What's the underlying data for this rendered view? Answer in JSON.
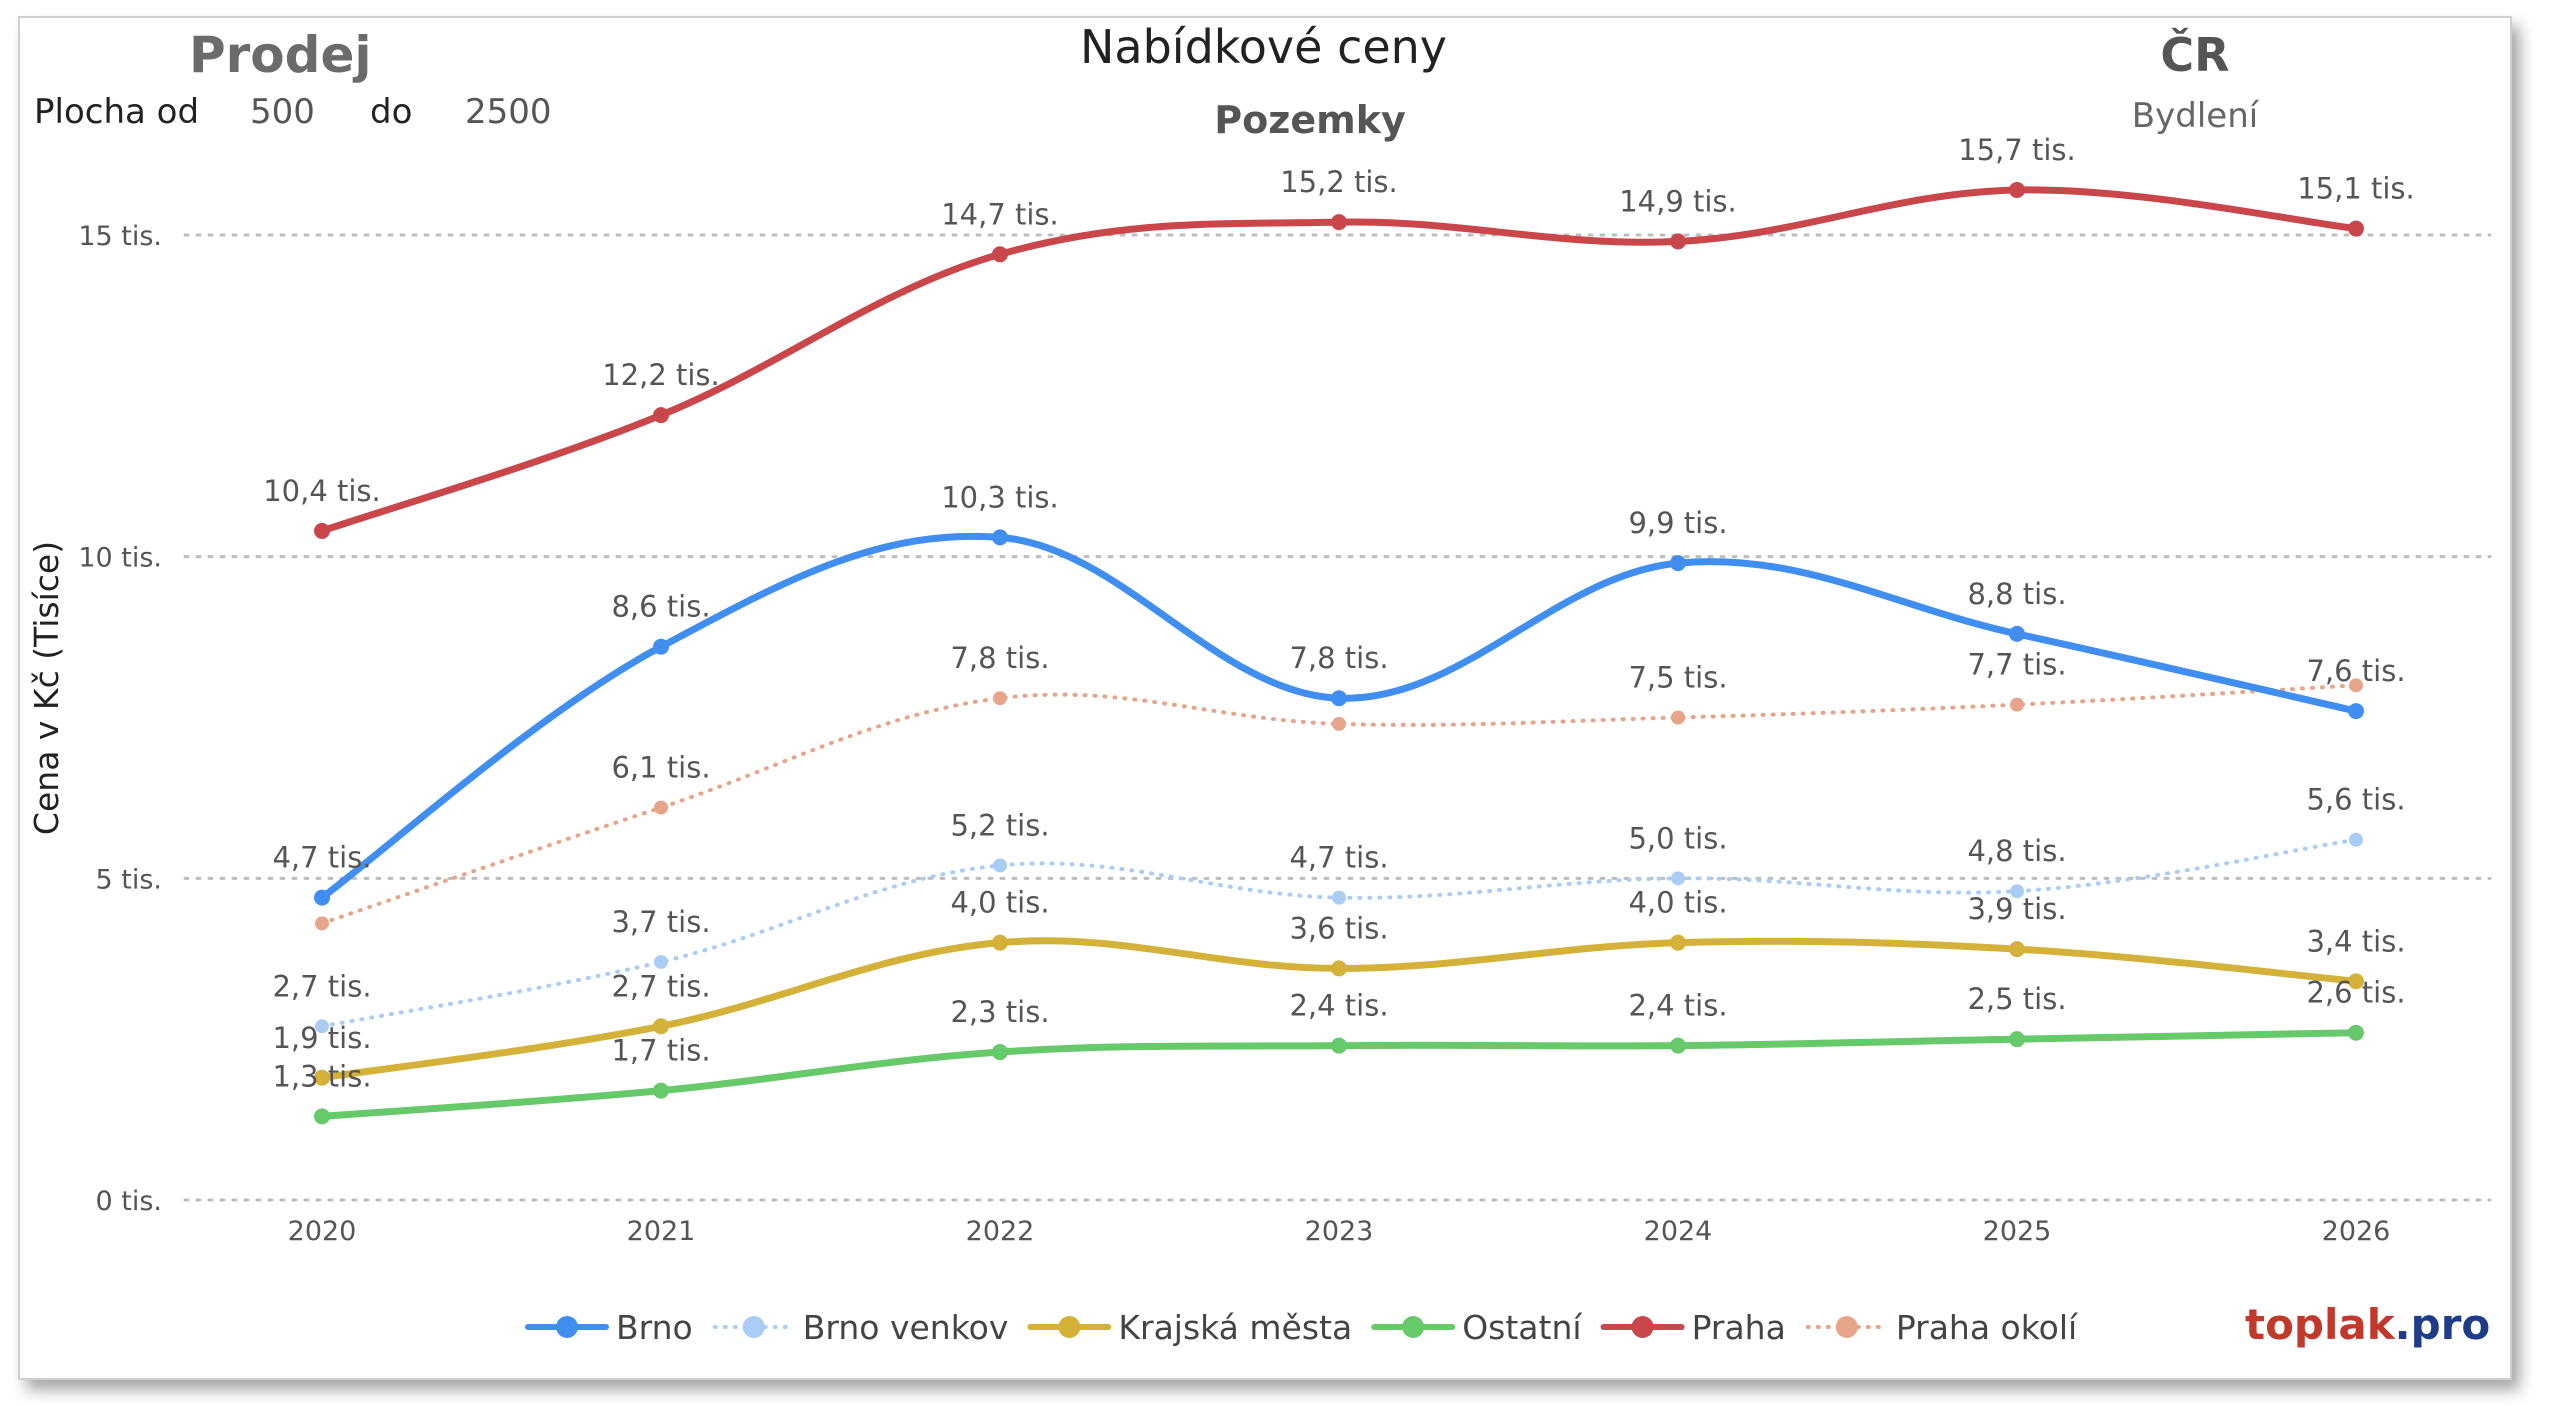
{
  "header": {
    "left_title": "Prodej",
    "title": "Nabídkové ceny",
    "subtitle": "Pozemky",
    "region": "ČR",
    "region_sub": "Bydlení",
    "filter": {
      "label_from": "Plocha od",
      "value_from": "500",
      "label_to": "do",
      "value_to": "2500"
    }
  },
  "brand": {
    "part1": "toplak",
    "part2": ".pro",
    "color1": "#c0392b",
    "color2": "#1f3c88"
  },
  "chart_data": {
    "type": "line",
    "title": "Nabídkové ceny",
    "subtitle": "Pozemky",
    "xlabel": "",
    "ylabel": "Cena v Kč (Tisíce)",
    "x": [
      "2020",
      "2021",
      "2022",
      "2023",
      "2024",
      "2025",
      "2026"
    ],
    "ylim": [
      0,
      15000
    ],
    "yticks": [
      {
        "value": 0,
        "label": "0 tis."
      },
      {
        "value": 5000,
        "label": "5 tis."
      },
      {
        "value": 10000,
        "label": "10 tis."
      },
      {
        "value": 15000,
        "label": "15 tis."
      }
    ],
    "grid": "horizontal-dotted",
    "legend": "bottom",
    "series": [
      {
        "name": "Brno",
        "color": "#3f8ef0",
        "style": "solid",
        "values": [
          4700,
          8600,
          10300,
          7800,
          9900,
          8800,
          7600
        ],
        "labels": [
          "4,7 tis.",
          "8,6 tis.",
          "10,3 tis.",
          "7,8 tis.",
          "9,9 tis.",
          "8,8 tis.",
          "7,6 tis."
        ]
      },
      {
        "name": "Brno venkov",
        "color": "#a9cdf5",
        "style": "dotted",
        "values": [
          2700,
          3700,
          5200,
          4700,
          5000,
          4800,
          5600
        ],
        "labels": [
          "2,7 tis.",
          "3,7 tis.",
          "5,2 tis.",
          "4,7 tis.",
          "5,0 tis.",
          "4,8 tis.",
          "5,6 tis."
        ]
      },
      {
        "name": "Krajská města",
        "color": "#d4b23a",
        "style": "solid",
        "values": [
          1900,
          2700,
          4000,
          3600,
          4000,
          3900,
          3400
        ],
        "labels": [
          "1,9 tis.",
          "2,7 tis.",
          "4,0 tis.",
          "3,6 tis.",
          "4,0 tis.",
          "3,9 tis.",
          "3,4 tis."
        ]
      },
      {
        "name": "Ostatní",
        "color": "#66c96a",
        "style": "solid",
        "values": [
          1300,
          1700,
          2300,
          2400,
          2400,
          2500,
          2600
        ],
        "labels": [
          "1,3 tis.",
          "1,7 tis.",
          "2,3 tis.",
          "2,4 tis.",
          "2,4 tis.",
          "2,5 tis.",
          "2,6 tis."
        ]
      },
      {
        "name": "Praha",
        "color": "#c9474b",
        "style": "solid",
        "values": [
          10400,
          12200,
          14700,
          15200,
          14900,
          15700,
          15100
        ],
        "labels": [
          "10,4 tis.",
          "12,2 tis.",
          "14,7 tis.",
          "15,2 tis.",
          "14,9 tis.",
          "15,7 tis.",
          "15,1 tis."
        ]
      },
      {
        "name": "Praha okolí",
        "color": "#e6a589",
        "style": "dotted",
        "values": [
          4300,
          6100,
          7800,
          7400,
          7500,
          7700,
          8000
        ],
        "labels": [
          "",
          "6,1 tis.",
          "7,8 tis.",
          "",
          "7,5 tis.",
          "7,7 tis.",
          ""
        ]
      }
    ]
  }
}
